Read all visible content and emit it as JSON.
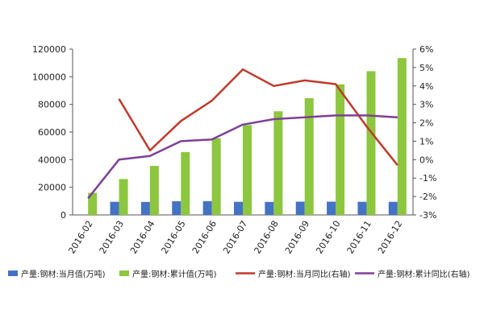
{
  "chart_data": {
    "type": "bar+line",
    "title": "",
    "categories": [
      "2016-02",
      "2016-03",
      "2016-04",
      "2016-05",
      "2016-06",
      "2016-07",
      "2016-08",
      "2016-09",
      "2016-10",
      "2016-11",
      "2016-12"
    ],
    "left_axis": {
      "range": [
        0,
        120000
      ],
      "ticks": [
        "0",
        "20000",
        "40000",
        "60000",
        "80000",
        "100000",
        "120000"
      ]
    },
    "right_axis": {
      "range": [
        -3,
        6
      ],
      "ticks": [
        "-3%",
        "-2%",
        "-1%",
        "0%",
        "1%",
        "2%",
        "3%",
        "4%",
        "5%",
        "6%"
      ]
    },
    "series": [
      {
        "name": "产量:钢材:当月值(万吨)",
        "kind": "bar",
        "axis": "left",
        "color": "#4472C4",
        "values": [
          null,
          9500,
          9400,
          9900,
          10000,
          9500,
          9400,
          9600,
          9600,
          9500,
          9500
        ]
      },
      {
        "name": "产量:钢材:累计值(万吨)",
        "kind": "bar",
        "axis": "left",
        "color": "#8DC63F",
        "values": [
          16000,
          26000,
          35500,
          45500,
          55500,
          65000,
          75000,
          84500,
          94500,
          104000,
          113500
        ]
      },
      {
        "name": "产量:钢材:当月同比(右轴)",
        "kind": "line",
        "axis": "right",
        "color": "#C0392B",
        "values": [
          null,
          3.3,
          0.5,
          2.1,
          3.2,
          4.9,
          4.0,
          4.3,
          4.1,
          1.8,
          -0.3
        ]
      },
      {
        "name": "产量:钢材:累计同比(右轴)",
        "kind": "line",
        "axis": "right",
        "color": "#7E3F98",
        "values": [
          -2.1,
          0.0,
          0.2,
          1.0,
          1.1,
          1.9,
          2.2,
          2.3,
          2.4,
          2.4,
          2.3
        ]
      }
    ],
    "legend_position": "bottom"
  }
}
